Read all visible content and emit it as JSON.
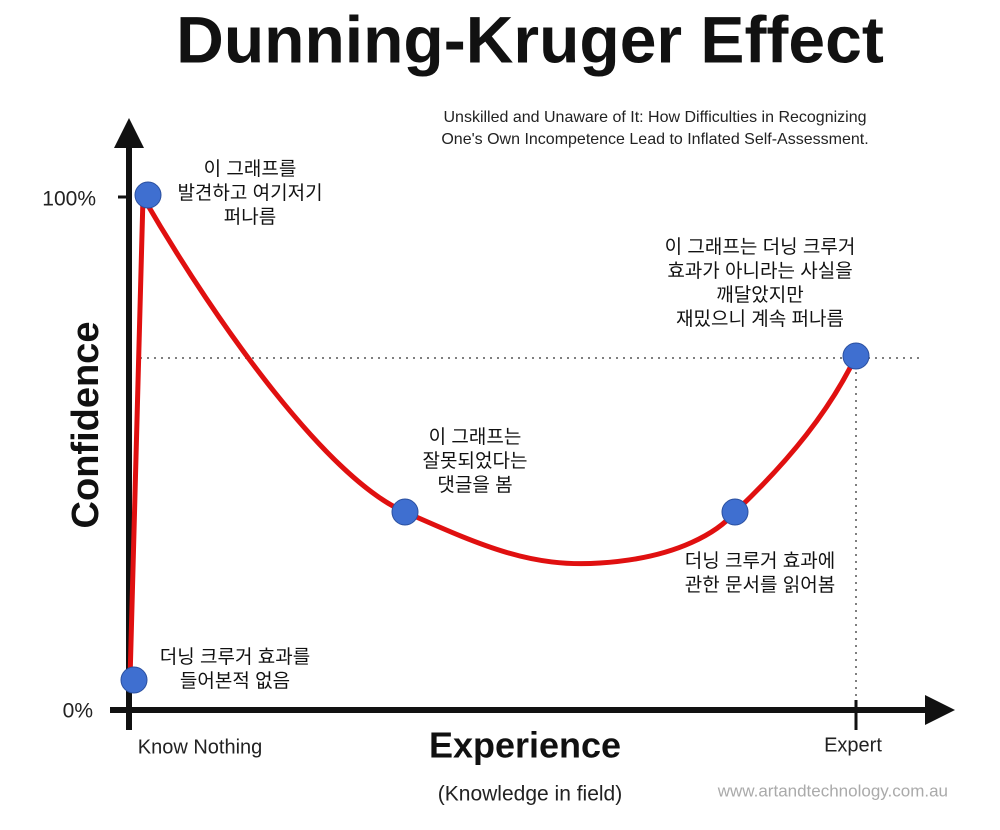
{
  "header": {
    "title": "Dunning-Kruger Effect",
    "subtitle": [
      "Unskilled and Unaware of It: How Difficulties in Recognizing",
      "One's Own Incompetence Lead to Inflated Self-Assessment."
    ]
  },
  "axes": {
    "y_label": "Confidence",
    "y_ticks": [
      "100%",
      "0%"
    ],
    "x_label": "Experience",
    "x_sublabel": "(Knowledge in field)",
    "x_ticks": [
      "Know Nothing",
      "Expert"
    ]
  },
  "annotations": [
    {
      "lines": [
        "더닝 크루거 효과를",
        "들어본적 없음"
      ]
    },
    {
      "lines": [
        "이 그래프를",
        "발견하고 여기저기",
        "퍼나름"
      ]
    },
    {
      "lines": [
        "이 그래프는",
        "잘못되었다는",
        "댓글을 봄"
      ]
    },
    {
      "lines": [
        "더닝 크루거 효과에",
        "관한 문서를 읽어봄"
      ]
    },
    {
      "lines": [
        "이 그래프는 더닝 크루거",
        "효과가 아니라는 사실을",
        "깨달았지만",
        "재밌으니 계속 퍼나름"
      ]
    }
  ],
  "footer": {
    "source": "www.artandtechnology.com.au"
  }
}
